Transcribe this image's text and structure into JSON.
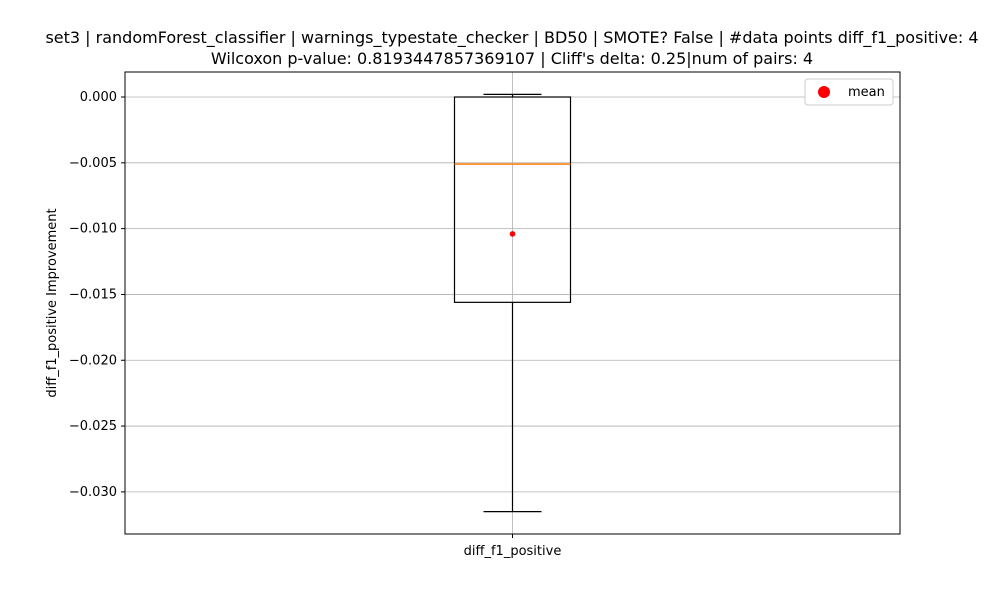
{
  "chart_data": {
    "type": "box",
    "title_line1": "set3 | randomForest_classifier | warnings_typestate_checker | BD50 | SMOTE? False | #data points diff_f1_positive: 4",
    "title_line2": "Wilcoxon p-value: 0.8193447857369107 | Cliff's delta: 0.25|num of pairs: 4",
    "xlabel": "",
    "ylabel": "diff_f1_positive Improvement",
    "categories": [
      "diff_f1_positive"
    ],
    "ylim": [
      -0.0332,
      0.0019
    ],
    "yticks": [
      0.0,
      -0.005,
      -0.01,
      -0.015,
      -0.02,
      -0.025,
      -0.03
    ],
    "ytick_labels": [
      "0.000",
      "−0.005",
      "−0.010",
      "−0.015",
      "−0.020",
      "−0.025",
      "−0.030"
    ],
    "grid": true,
    "box": {
      "whisker_low": -0.0315,
      "q1": -0.0156,
      "median": -0.0051,
      "q3": 0.0,
      "whisker_high": 0.0002,
      "mean": -0.0104
    },
    "legend": {
      "placement": "top-right",
      "entries": [
        "mean"
      ]
    },
    "colors": {
      "box": "#000000",
      "median": "#ff7f0e",
      "mean": "#ff0000",
      "grid": "#b0b0b0"
    }
  }
}
